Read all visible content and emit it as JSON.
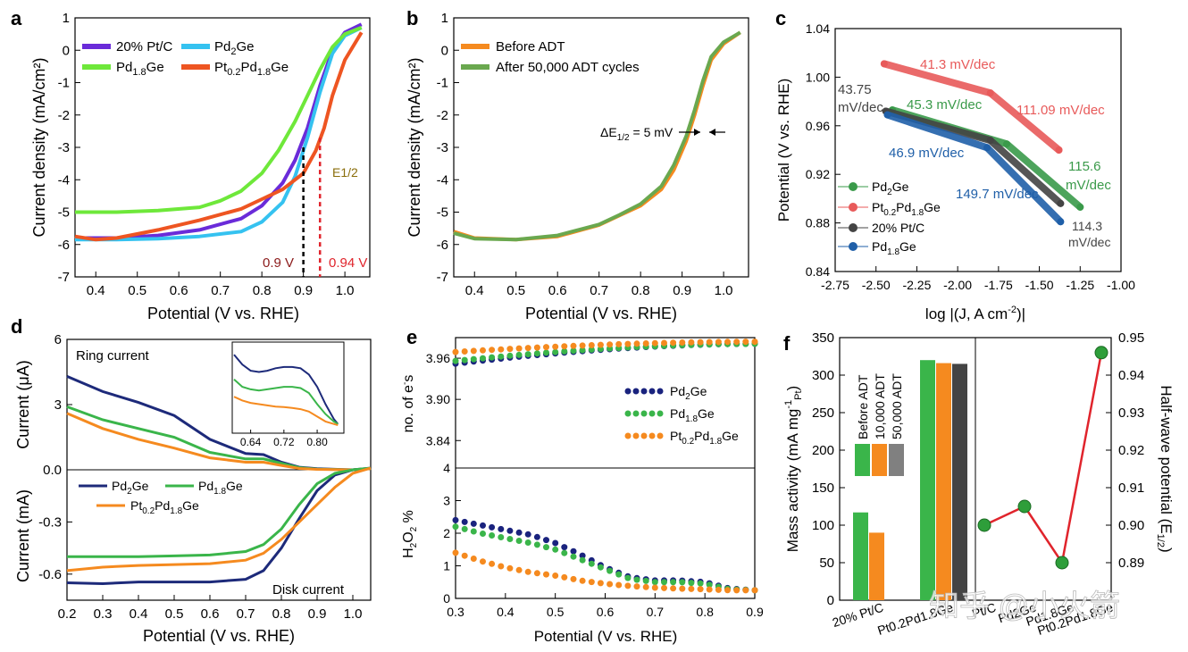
{
  "colors": {
    "purple": "#6a2bd9",
    "cyan": "#35c2f0",
    "lime": "#6ee83a",
    "redorange": "#ee5522",
    "orange": "#f58a1f",
    "green": "#6aa84f",
    "dkgreen": "#3a9a4a",
    "red": "#e85a5a",
    "gray": "#444444",
    "blue": "#1f5fa8",
    "navy": "#1d2a7a",
    "mgreen": "#3ab54a",
    "dblue": "#1a237e"
  },
  "watermark": "知乎 @小火箭",
  "chart_data": [
    {
      "id": "a",
      "panel_label": "a",
      "type": "line",
      "xlabel": "Potential (V vs. RHE)",
      "ylabel": "Current density (mA/cm²)",
      "xlim": [
        0.35,
        1.06
      ],
      "ylim": [
        -7,
        1
      ],
      "xticks": [
        "0.4",
        "0.5",
        "0.6",
        "0.7",
        "0.8",
        "0.9",
        "1.0"
      ],
      "yticks": [
        "1",
        "0",
        "-1",
        "-2",
        "-3",
        "-4",
        "-5",
        "-6",
        "-7"
      ],
      "series": [
        {
          "name": "20% Pt/C",
          "color": "purple",
          "x": [
            0.35,
            0.45,
            0.55,
            0.65,
            0.75,
            0.8,
            0.85,
            0.88,
            0.91,
            0.94,
            0.97,
            1.0,
            1.04
          ],
          "y": [
            -5.8,
            -5.8,
            -5.72,
            -5.55,
            -5.2,
            -4.8,
            -4.1,
            -3.4,
            -2.4,
            -1.1,
            0.0,
            0.55,
            0.8
          ]
        },
        {
          "name": "Pd2Ge",
          "color": "cyan",
          "x": [
            0.35,
            0.45,
            0.55,
            0.65,
            0.75,
            0.8,
            0.85,
            0.88,
            0.91,
            0.94,
            0.97,
            1.0,
            1.04
          ],
          "y": [
            -5.85,
            -5.85,
            -5.82,
            -5.75,
            -5.6,
            -5.3,
            -4.7,
            -3.9,
            -2.7,
            -1.3,
            -0.1,
            0.45,
            0.7
          ]
        },
        {
          "name": "Pd1.8Ge",
          "color": "lime",
          "x": [
            0.35,
            0.45,
            0.55,
            0.65,
            0.7,
            0.75,
            0.8,
            0.84,
            0.88,
            0.91,
            0.94,
            0.97,
            1.0,
            1.04
          ],
          "y": [
            -5.0,
            -5.0,
            -4.95,
            -4.85,
            -4.65,
            -4.35,
            -3.8,
            -3.1,
            -2.2,
            -1.4,
            -0.6,
            0.1,
            0.5,
            0.7
          ]
        },
        {
          "name": "Pt0.2Pd1.8Ge",
          "color": "redorange",
          "x": [
            0.35,
            0.4,
            0.45,
            0.55,
            0.65,
            0.75,
            0.8,
            0.85,
            0.9,
            0.93,
            0.95,
            0.97,
            1.0,
            1.04
          ],
          "y": [
            -5.75,
            -5.85,
            -5.8,
            -5.55,
            -5.25,
            -4.9,
            -4.6,
            -4.3,
            -3.8,
            -3.1,
            -2.4,
            -1.4,
            -0.3,
            0.55
          ]
        }
      ],
      "annotations": {
        "e_half": "E1/2",
        "v090": "0.9 V",
        "v094": "0.94 V"
      },
      "markers": {
        "v090_x": 0.9,
        "v094_x": 0.94
      }
    },
    {
      "id": "b",
      "panel_label": "b",
      "type": "line",
      "xlabel": "Potential (V vs. RHE)",
      "ylabel": "Current density (mA/cm²)",
      "xlim": [
        0.35,
        1.06
      ],
      "ylim": [
        -7,
        1
      ],
      "xticks": [
        "0.4",
        "0.5",
        "0.6",
        "0.7",
        "0.8",
        "0.9",
        "1.0"
      ],
      "yticks": [
        "1",
        "0",
        "-1",
        "-2",
        "-3",
        "-4",
        "-5",
        "-6",
        "-7"
      ],
      "series": [
        {
          "name": "Before ADT",
          "color": "orange",
          "x": [
            0.35,
            0.4,
            0.5,
            0.6,
            0.7,
            0.75,
            0.8,
            0.85,
            0.88,
            0.91,
            0.93,
            0.95,
            0.97,
            1.0,
            1.04
          ],
          "y": [
            -5.6,
            -5.8,
            -5.85,
            -5.75,
            -5.4,
            -5.1,
            -4.8,
            -4.3,
            -3.7,
            -2.8,
            -2.0,
            -1.1,
            -0.3,
            0.2,
            0.55
          ]
        },
        {
          "name": "After 50,000 ADT cycles",
          "color": "green",
          "x": [
            0.35,
            0.4,
            0.5,
            0.6,
            0.7,
            0.75,
            0.8,
            0.85,
            0.88,
            0.91,
            0.93,
            0.95,
            0.97,
            1.0,
            1.04
          ],
          "y": [
            -5.65,
            -5.82,
            -5.85,
            -5.72,
            -5.38,
            -5.08,
            -4.75,
            -4.2,
            -3.55,
            -2.65,
            -1.85,
            -0.95,
            -0.2,
            0.25,
            0.55
          ]
        }
      ],
      "annotation": "ΔE1/2 = 5 mV"
    },
    {
      "id": "c",
      "panel_label": "c",
      "type": "line",
      "xlabel": "log |(J, A cm⁻²)|",
      "ylabel": "Potential (V vs. RHE)",
      "xlim": [
        -2.75,
        -1.0
      ],
      "ylim": [
        0.84,
        1.04
      ],
      "xticks": [
        "-2.75",
        "-2.50",
        "-2.25",
        "-2.00",
        "-1.75",
        "-1.50",
        "-1.25",
        "-1.00"
      ],
      "yticks": [
        "1.04",
        "1.00",
        "0.96",
        "0.92",
        "0.88",
        "0.84"
      ],
      "series": [
        {
          "name": "Pd2Ge",
          "color": "dkgreen",
          "x": [
            -2.4,
            -1.7,
            -1.25
          ],
          "y": [
            0.973,
            0.945,
            0.893
          ]
        },
        {
          "name": "Pt0.2Pd1.8Ge",
          "color": "red",
          "x": [
            -2.45,
            -1.8,
            -1.38
          ],
          "y": [
            1.011,
            0.987,
            0.94
          ]
        },
        {
          "name": "20% Pt/C",
          "color": "gray",
          "x": [
            -2.44,
            -1.8,
            -1.37
          ],
          "y": [
            0.972,
            0.948,
            0.896
          ]
        },
        {
          "name": "Pd1.8Ge",
          "color": "blue",
          "x": [
            -2.43,
            -1.82,
            -1.37
          ],
          "y": [
            0.969,
            0.942,
            0.881
          ]
        }
      ],
      "slope_labels": {
        "s1": "41.3 mV/dec",
        "s2": "111.09 mV/dec",
        "s3a": "43.75",
        "s3b": "mV/dec",
        "s4": "45.3 mV/dec",
        "s5": "46.9 mV/dec",
        "s6a": "115.6",
        "s6b": "mV/dec",
        "s7": "149.7 mV/dec",
        "s8a": "114.3",
        "s8b": "mV/dec"
      }
    },
    {
      "id": "d",
      "panel_label": "d",
      "type": "line",
      "xlabel": "Potential (V vs. RHE)",
      "ylabel_top": "Current (μA)",
      "ylabel_bottom": "Current (mA)",
      "xlim": [
        0.2,
        1.05
      ],
      "ylim_top": [
        0,
        6
      ],
      "ylim_bottom": [
        -0.75,
        0
      ],
      "xticks": [
        "0.2",
        "0.3",
        "0.4",
        "0.5",
        "0.6",
        "0.7",
        "0.8",
        "0.9",
        "1.0"
      ],
      "yticks_top": [
        "6",
        "3",
        "0.0"
      ],
      "yticks_bottom": [
        "-0.3",
        "-0.6"
      ],
      "ring_label": "Ring current",
      "disk_label": "Disk current",
      "inset_xticks": [
        "0.64",
        "0.72",
        "0.80"
      ],
      "inset_xlim": [
        0.6,
        0.86
      ],
      "ring_series": [
        {
          "name": "Pd2Ge",
          "color": "navy",
          "x": [
            0.2,
            0.3,
            0.4,
            0.5,
            0.6,
            0.7,
            0.75,
            0.8,
            0.85,
            0.9,
            1.0,
            1.05
          ],
          "y": [
            4.3,
            3.6,
            3.1,
            2.5,
            1.4,
            0.75,
            0.7,
            0.35,
            0.12,
            0.05,
            0.0,
            0.05
          ]
        },
        {
          "name": "Pd1.8Ge",
          "color": "mgreen",
          "x": [
            0.2,
            0.3,
            0.4,
            0.5,
            0.6,
            0.7,
            0.75,
            0.8,
            0.85,
            0.9,
            1.0,
            1.05
          ],
          "y": [
            2.9,
            2.3,
            1.9,
            1.5,
            0.8,
            0.5,
            0.5,
            0.3,
            0.1,
            0.03,
            0.0,
            0.05
          ]
        },
        {
          "name": "Pt0.2Pd1.8Ge",
          "color": "orange",
          "x": [
            0.2,
            0.3,
            0.4,
            0.5,
            0.6,
            0.7,
            0.75,
            0.8,
            0.85,
            0.9,
            1.0,
            1.05
          ],
          "y": [
            2.6,
            1.9,
            1.4,
            1.0,
            0.55,
            0.35,
            0.35,
            0.2,
            0.06,
            0.02,
            0.0,
            0.05
          ]
        }
      ],
      "inset_series": [
        {
          "name": "Pd2Ge",
          "color": "navy",
          "x": [
            0.6,
            0.62,
            0.64,
            0.66,
            0.68,
            0.7,
            0.72,
            0.74,
            0.76,
            0.78,
            0.8,
            0.82,
            0.84,
            0.85
          ],
          "y": [
            3.6,
            3.2,
            2.95,
            2.9,
            2.95,
            3.05,
            3.1,
            3.1,
            3.05,
            2.8,
            2.3,
            1.6,
            1.0,
            0.8
          ]
        },
        {
          "name": "Pd1.8Ge",
          "color": "mgreen",
          "x": [
            0.6,
            0.62,
            0.64,
            0.66,
            0.68,
            0.7,
            0.72,
            0.74,
            0.76,
            0.78,
            0.8,
            0.82,
            0.84,
            0.85
          ],
          "y": [
            2.6,
            2.3,
            2.2,
            2.15,
            2.2,
            2.25,
            2.3,
            2.3,
            2.25,
            2.05,
            1.6,
            1.2,
            0.9,
            0.8
          ]
        },
        {
          "name": "Pt0.2Pd1.8Ge",
          "color": "orange",
          "x": [
            0.6,
            0.62,
            0.64,
            0.66,
            0.68,
            0.7,
            0.72,
            0.74,
            0.76,
            0.78,
            0.8,
            0.82,
            0.84,
            0.85
          ],
          "y": [
            1.9,
            1.75,
            1.65,
            1.6,
            1.55,
            1.5,
            1.48,
            1.45,
            1.4,
            1.3,
            1.1,
            0.9,
            0.8,
            0.75
          ]
        }
      ],
      "disk_series": [
        {
          "name": "Pd2Ge",
          "color": "navy",
          "x": [
            0.2,
            0.3,
            0.4,
            0.5,
            0.6,
            0.7,
            0.75,
            0.8,
            0.85,
            0.9,
            0.95,
            1.0,
            1.05
          ],
          "y": [
            -0.65,
            -0.655,
            -0.645,
            -0.645,
            -0.645,
            -0.63,
            -0.58,
            -0.45,
            -0.28,
            -0.12,
            -0.03,
            0.0,
            0.01
          ]
        },
        {
          "name": "Pd1.8Ge",
          "color": "mgreen",
          "x": [
            0.2,
            0.3,
            0.4,
            0.5,
            0.6,
            0.7,
            0.75,
            0.8,
            0.85,
            0.9,
            0.95,
            1.0,
            1.05
          ],
          "y": [
            -0.5,
            -0.5,
            -0.5,
            -0.495,
            -0.49,
            -0.47,
            -0.43,
            -0.34,
            -0.2,
            -0.08,
            -0.02,
            0.0,
            0.01
          ]
        },
        {
          "name": "Pt0.2Pd1.8Ge",
          "color": "orange",
          "x": [
            0.2,
            0.3,
            0.4,
            0.5,
            0.6,
            0.7,
            0.75,
            0.8,
            0.85,
            0.9,
            0.95,
            1.0,
            1.05
          ],
          "y": [
            -0.58,
            -0.56,
            -0.55,
            -0.545,
            -0.54,
            -0.52,
            -0.48,
            -0.4,
            -0.3,
            -0.2,
            -0.1,
            -0.02,
            0.01
          ]
        }
      ]
    },
    {
      "id": "e",
      "panel_label": "e",
      "type": "scatter",
      "xlabel": "Potential (V vs. RHE)",
      "ylabel_top": "no. of e⁻s",
      "ylabel_bottom": "H₂O₂ %",
      "xlim": [
        0.3,
        0.9
      ],
      "ylim_top": [
        3.8,
        3.99
      ],
      "ylim_bottom": [
        0,
        4
      ],
      "xticks": [
        "0.3",
        "0.4",
        "0.5",
        "0.6",
        "0.7",
        "0.8",
        "0.9"
      ],
      "yticks_top": [
        "3.96",
        "3.90",
        "3.84"
      ],
      "yticks_bottom": [
        "4",
        "3",
        "2",
        "1",
        "0"
      ],
      "top_series": [
        {
          "name": "Pd2Ge",
          "color": "dblue",
          "x0": 0.3,
          "x1": 0.9,
          "y_start": 3.952,
          "y_end": 3.981
        },
        {
          "name": "Pd1.8Ge",
          "color": "mgreen",
          "x0": 0.3,
          "x1": 0.9,
          "y_start": 3.956,
          "y_end": 3.981
        },
        {
          "name": "Pt0.2Pd1.8Ge",
          "color": "orange",
          "x0": 0.3,
          "x1": 0.9,
          "y_start": 3.969,
          "y_end": 3.984
        }
      ],
      "bottom_series": [
        {
          "name": "Pd2Ge",
          "color": "dblue",
          "x": [
            0.3,
            0.35,
            0.4,
            0.45,
            0.5,
            0.55,
            0.6,
            0.65,
            0.7,
            0.75,
            0.8,
            0.85,
            0.9
          ],
          "y": [
            2.4,
            2.25,
            2.1,
            1.95,
            1.7,
            1.35,
            0.95,
            0.65,
            0.55,
            0.55,
            0.5,
            0.3,
            0.25
          ]
        },
        {
          "name": "Pd1.8Ge",
          "color": "mgreen",
          "x": [
            0.3,
            0.35,
            0.4,
            0.45,
            0.5,
            0.55,
            0.6,
            0.65,
            0.7,
            0.75,
            0.8,
            0.85,
            0.9
          ],
          "y": [
            2.2,
            2.0,
            1.85,
            1.7,
            1.5,
            1.2,
            0.9,
            0.6,
            0.5,
            0.5,
            0.45,
            0.28,
            0.25
          ]
        },
        {
          "name": "Pt0.2Pd1.8Ge",
          "color": "orange",
          "x": [
            0.3,
            0.35,
            0.4,
            0.45,
            0.5,
            0.55,
            0.6,
            0.65,
            0.7,
            0.75,
            0.8,
            0.85,
            0.9
          ],
          "y": [
            1.4,
            1.15,
            0.95,
            0.8,
            0.7,
            0.55,
            0.45,
            0.38,
            0.33,
            0.3,
            0.28,
            0.25,
            0.25
          ]
        }
      ]
    },
    {
      "id": "f",
      "panel_label": "f",
      "type": "bar",
      "ylabel_left": "Mass activity (mA mg⁻¹Pt)",
      "ylabel_right": "Half-wave potential (E1/2)",
      "ylim_left": [
        0,
        350
      ],
      "ylim_right": [
        0.88,
        0.95
      ],
      "yticks_left": [
        "350",
        "300",
        "250",
        "200",
        "150",
        "100",
        "50",
        "0"
      ],
      "yticks_right": [
        "0.95",
        "0.94",
        "0.93",
        "0.92",
        "0.91",
        "0.90",
        "0.89"
      ],
      "categories": [
        "20% Pt/C",
        "Pt0.2Pd1.8Ge"
      ],
      "bar_legend": [
        "Before ADT",
        "10,000 ADT",
        "50,000 ADT"
      ],
      "bar_colors": [
        "mgreen",
        "orange",
        "gray"
      ],
      "series": [
        {
          "name": "Before ADT",
          "values": [
            117,
            320
          ]
        },
        {
          "name": "10,000 ADT",
          "values": [
            90,
            316
          ]
        },
        {
          "name": "50,000 ADT",
          "values": [
            null,
            315
          ]
        }
      ],
      "half_wave": {
        "categories": [
          "Pt/C",
          "Pd2Ge",
          "Pd1.8Ge",
          "Pt0.2Pd1.8Ge"
        ],
        "values": [
          0.9,
          0.905,
          0.89,
          0.946
        ]
      }
    }
  ]
}
